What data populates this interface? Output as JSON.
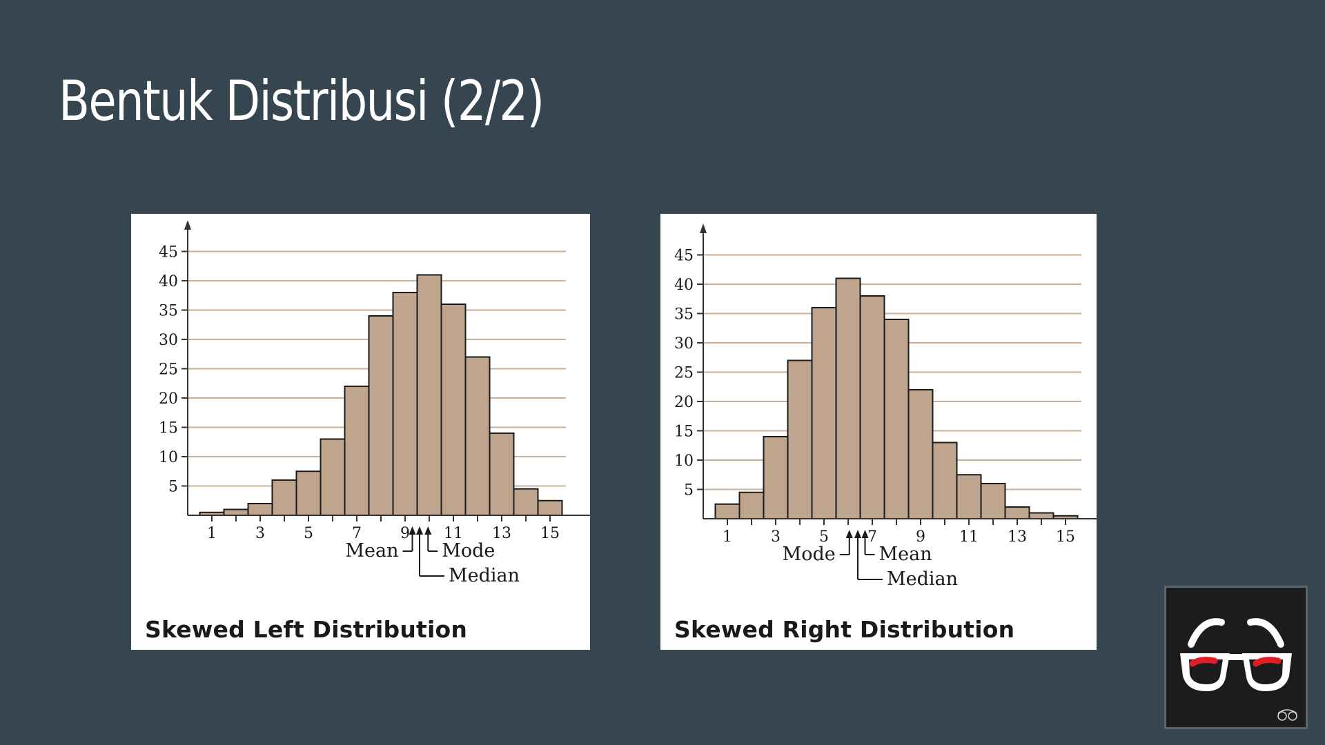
{
  "slide": {
    "title": "Bentuk Distribusi (2/2)"
  },
  "colors": {
    "background": "#364651",
    "bar_fill": "#bfa58e",
    "grid_line": "#c9b09a"
  },
  "chart_data": [
    {
      "type": "bar",
      "title": "Skewed Left Distribution",
      "x": [
        1,
        2,
        3,
        4,
        5,
        6,
        7,
        8,
        9,
        10,
        11,
        12,
        13,
        14,
        15
      ],
      "values": [
        0.5,
        1,
        2,
        6,
        7.5,
        13,
        22,
        34,
        38,
        41,
        36,
        27,
        14,
        4.5,
        2.5
      ],
      "x_tick_labels": [
        "1",
        "3",
        "5",
        "7",
        "9",
        "11",
        "13",
        "15"
      ],
      "y_ticks": [
        5,
        10,
        15,
        20,
        25,
        30,
        35,
        40,
        45
      ],
      "xlim": [
        0,
        16.5
      ],
      "ylim": [
        0,
        48
      ],
      "grid": true,
      "annotations": [
        {
          "label": "Mean",
          "x": 9.3
        },
        {
          "label": "Median",
          "x": 9.6
        },
        {
          "label": "Mode",
          "x": 9.95
        }
      ]
    },
    {
      "type": "bar",
      "title": "Skewed Right Distribution",
      "x": [
        1,
        2,
        3,
        4,
        5,
        6,
        7,
        8,
        9,
        10,
        11,
        12,
        13,
        14,
        15
      ],
      "values": [
        2.5,
        4.5,
        14,
        27,
        36,
        41,
        38,
        34,
        22,
        13,
        7.5,
        6,
        2,
        1,
        0.5
      ],
      "x_tick_labels": [
        "1",
        "3",
        "5",
        "7",
        "9",
        "11",
        "13",
        "15"
      ],
      "y_ticks": [
        5,
        10,
        15,
        20,
        25,
        30,
        35,
        40,
        45
      ],
      "xlim": [
        0,
        16.5
      ],
      "ylim": [
        0,
        48
      ],
      "grid": true,
      "annotations": [
        {
          "label": "Mode",
          "x": 6.05
        },
        {
          "label": "Median",
          "x": 6.4
        },
        {
          "label": "Mean",
          "x": 6.7
        }
      ]
    }
  ],
  "logo": {
    "icon": "glasses-icon"
  }
}
